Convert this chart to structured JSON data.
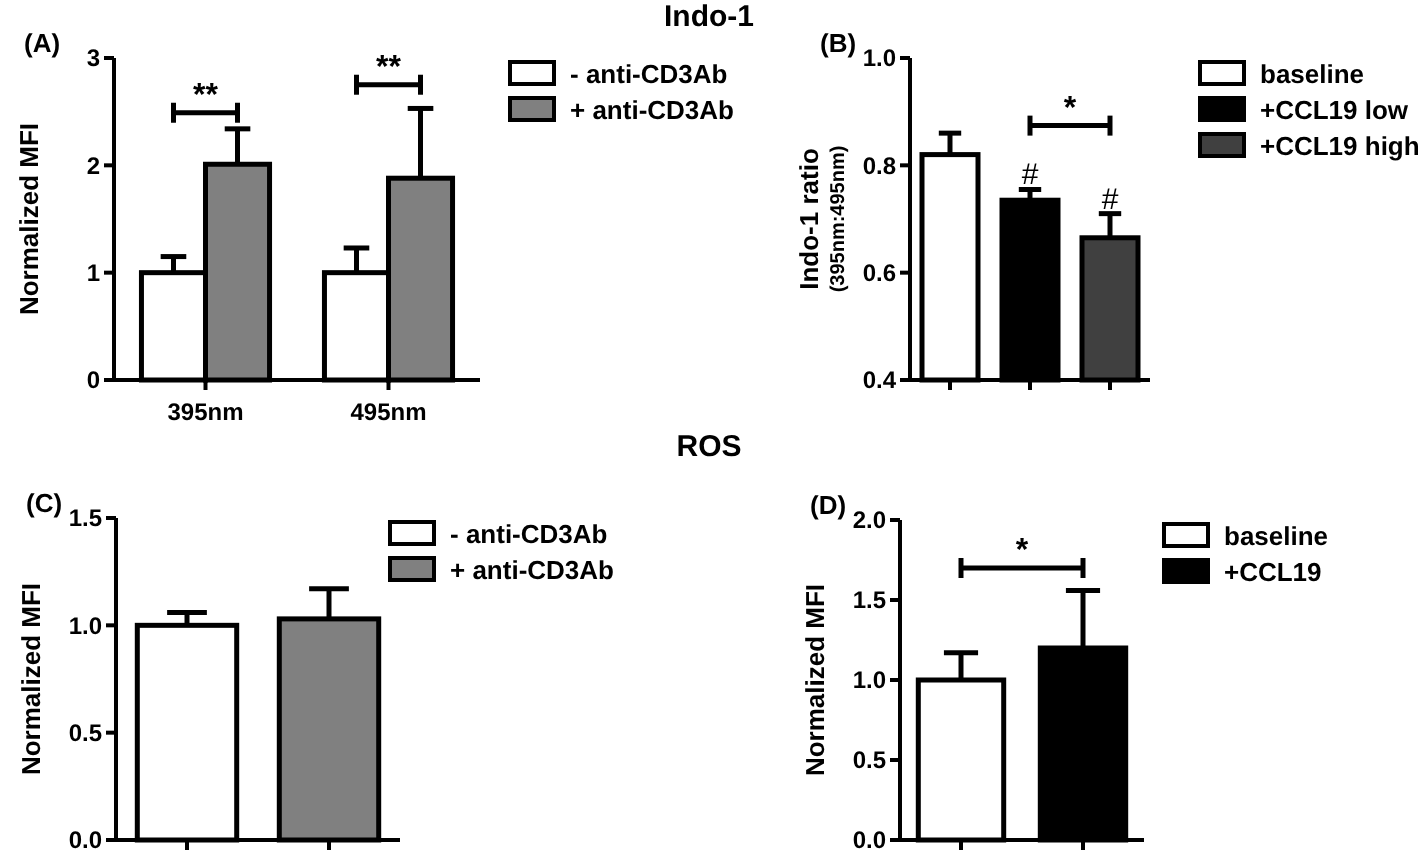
{
  "chart_data": [
    {
      "type": "other",
      "title": "Indo-1"
    },
    {
      "type": "bar",
      "subtitle": "(A)",
      "ylabel": "Normalized MFI",
      "categories": [
        "395nm",
        "495nm"
      ],
      "series": [
        {
          "name": "- anti-CD3Ab",
          "color": "#ffffff",
          "values": [
            1.0,
            1.0
          ],
          "errors": [
            0.15,
            0.23
          ]
        },
        {
          "name": "+ anti-CD3Ab",
          "color": "#808080",
          "values": [
            2.01,
            1.88
          ],
          "errors": [
            0.33,
            0.65
          ]
        }
      ],
      "ylim": [
        0,
        3
      ],
      "yticks": [
        0,
        1,
        2,
        3
      ],
      "legend": "right",
      "annotations": [
        "**",
        "**"
      ]
    },
    {
      "type": "bar",
      "subtitle": "(B)",
      "ylabel": "Indo-1  ratio\n(395nm:495nm)",
      "categories": [
        null,
        null,
        null
      ],
      "series": [
        {
          "name": "baseline",
          "color": "#ffffff",
          "values": [
            0.82,
            null,
            null
          ],
          "errors": [
            0.04,
            null,
            null
          ]
        },
        {
          "name": "+CCL19 low",
          "color": "#000000",
          "values": [
            null,
            0.735,
            null
          ],
          "errors": [
            null,
            0.02,
            null
          ]
        },
        {
          "name": "+CCL19 high",
          "color": "#404040",
          "values": [
            null,
            null,
            0.665
          ],
          "errors": [
            null,
            null,
            0.045
          ]
        }
      ],
      "ylim": [
        0.4,
        1.0
      ],
      "yticks": [
        0.4,
        0.6,
        0.8,
        {
          "value": 1.0,
          "label": "1.0"
        }
      ],
      "legend": "right",
      "annotations": [
        "#",
        "#",
        "*"
      ]
    },
    {
      "type": "other",
      "title": "ROS"
    },
    {
      "type": "bar",
      "subtitle": "(C)",
      "ylabel": "Normalized MFI",
      "categories": [
        null,
        null
      ],
      "series": [
        {
          "name": "- anti-CD3Ab",
          "color": "#ffffff",
          "values": [
            1.0,
            null
          ],
          "errors": [
            0.06,
            null
          ]
        },
        {
          "name": "+ anti-CD3Ab",
          "color": "#808080",
          "values": [
            null,
            1.03
          ],
          "errors": [
            null,
            0.14
          ]
        }
      ],
      "ylim": [
        0,
        1.5
      ],
      "yticks": [
        {
          "value": 0,
          "label": "0.0"
        },
        0.5,
        {
          "value": 1,
          "label": "1.0"
        },
        1.5
      ],
      "legend": "right"
    },
    {
      "type": "bar",
      "subtitle": "(D)",
      "ylabel": "Normalized MFI",
      "categories": [
        null,
        null
      ],
      "series": [
        {
          "name": "baseline",
          "color": "#ffffff",
          "values": [
            1.0,
            null
          ],
          "errors": [
            0.17,
            null
          ]
        },
        {
          "name": "+CCL19",
          "color": "#000000",
          "values": [
            null,
            1.2
          ],
          "errors": [
            null,
            0.36
          ]
        }
      ],
      "ylim": [
        0,
        2
      ],
      "yticks": [
        {
          "value": 0,
          "label": "0.0"
        },
        0.5,
        {
          "value": 1,
          "label": "1.0"
        },
        1.5,
        {
          "value": 2,
          "label": "2.0"
        }
      ],
      "legend": "right",
      "annotations": [
        "*"
      ]
    }
  ]
}
